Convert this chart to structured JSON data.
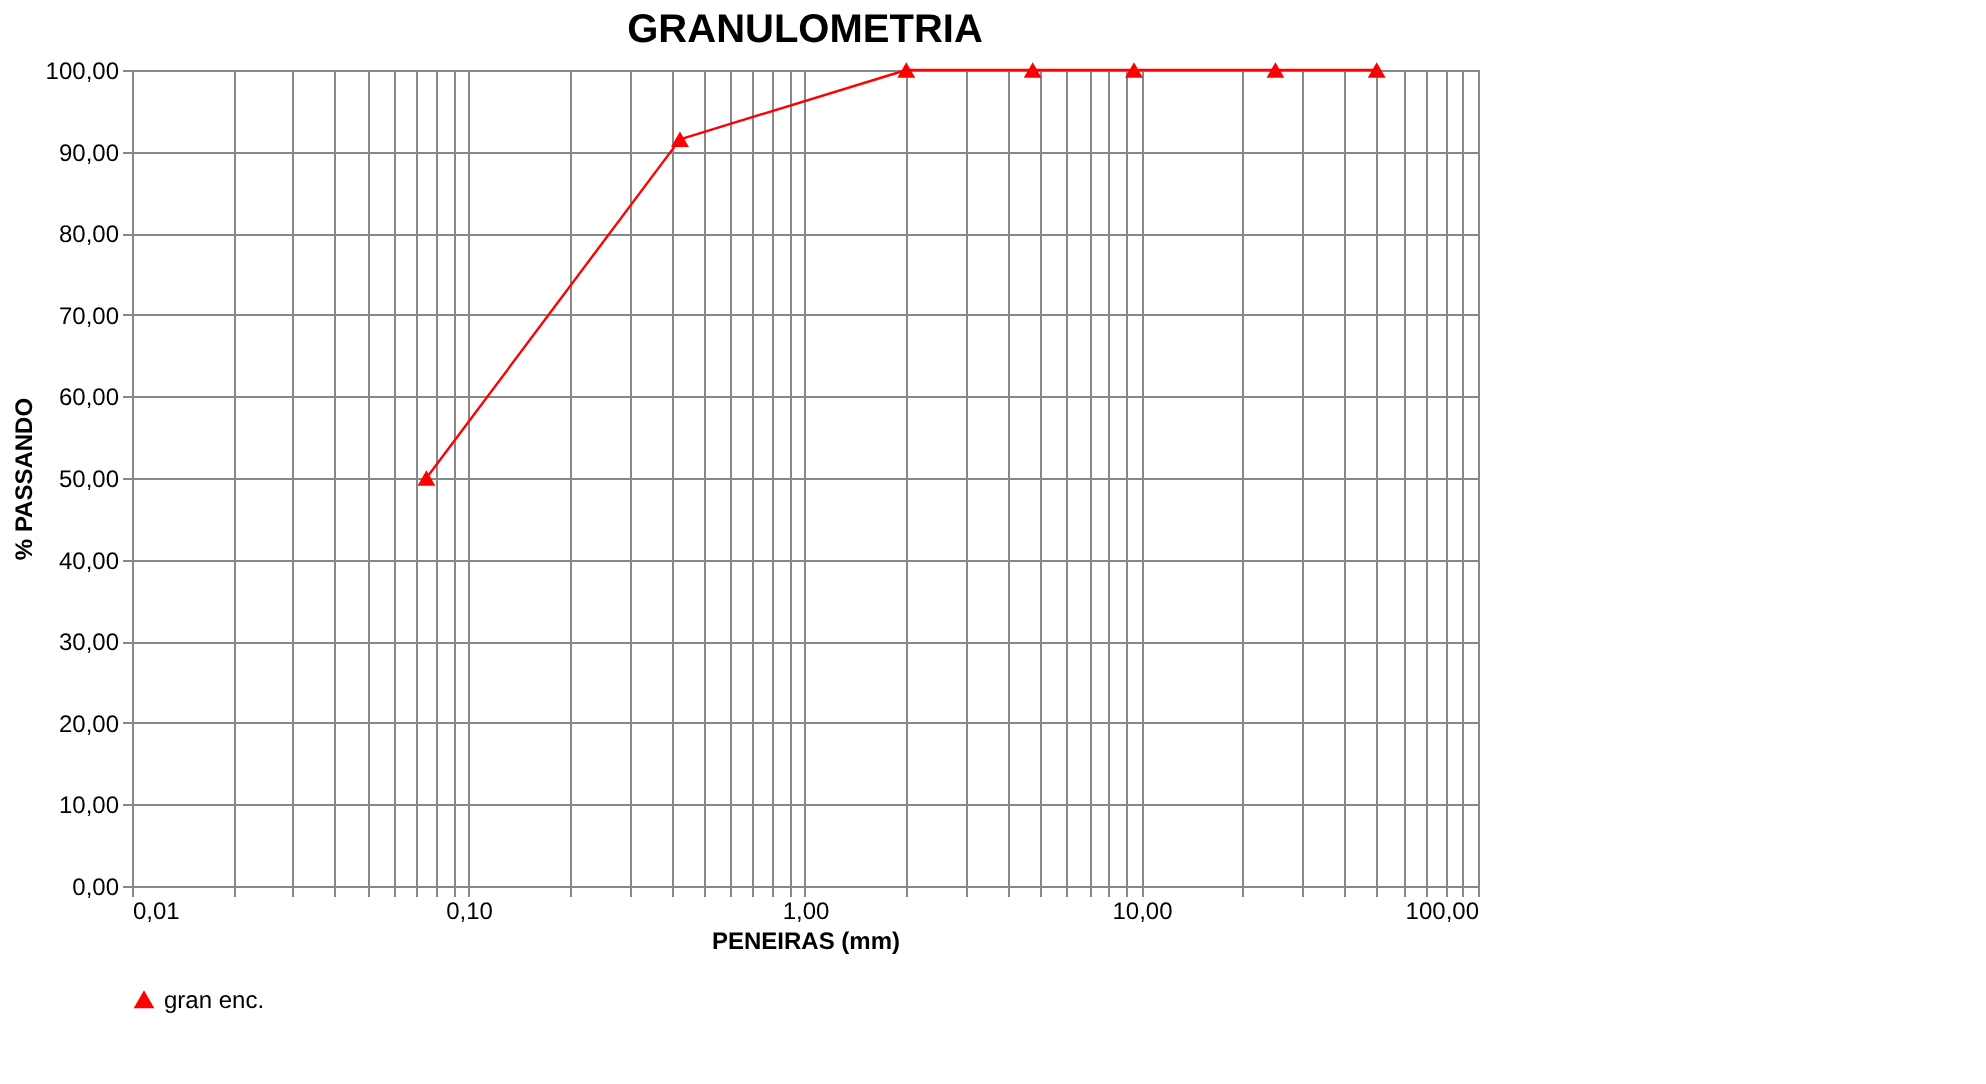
{
  "chart_data": {
    "type": "line",
    "title": "GRANULOMETRIA",
    "xlabel": "PENEIRAS (mm)",
    "ylabel": "% PASSANDO",
    "x": [
      0.075,
      0.425,
      2.0,
      4.75,
      9.5,
      25,
      50
    ],
    "series": [
      {
        "name": "gran enc.",
        "color": "#ff0000",
        "values": [
          50.0,
          91.5,
          100.0,
          100.0,
          100.0,
          100.0,
          100.0
        ]
      }
    ],
    "log": "x",
    "xlim": [
      0.01,
      100
    ],
    "ylim": [
      0,
      100
    ],
    "xticks": [
      {
        "value": 0.01,
        "label": "0,01"
      },
      {
        "value": 0.02,
        "label": null
      },
      {
        "value": 0.03,
        "label": null
      },
      {
        "value": 0.04,
        "label": null
      },
      {
        "value": 0.05,
        "label": null
      },
      {
        "value": 0.06,
        "label": null
      },
      {
        "value": 0.07,
        "label": null
      },
      {
        "value": 0.08,
        "label": null
      },
      {
        "value": 0.09,
        "label": null
      },
      {
        "value": 0.1,
        "label": "0,10"
      },
      {
        "value": 0.2,
        "label": null
      },
      {
        "value": 0.3,
        "label": null
      },
      {
        "value": 0.4,
        "label": null
      },
      {
        "value": 0.5,
        "label": null
      },
      {
        "value": 0.6,
        "label": null
      },
      {
        "value": 0.7,
        "label": null
      },
      {
        "value": 0.8,
        "label": null
      },
      {
        "value": 0.9,
        "label": null
      },
      {
        "value": 1,
        "label": "1,00"
      },
      {
        "value": 2,
        "label": null
      },
      {
        "value": 3,
        "label": null
      },
      {
        "value": 4,
        "label": null
      },
      {
        "value": 5,
        "label": null
      },
      {
        "value": 6,
        "label": null
      },
      {
        "value": 7,
        "label": null
      },
      {
        "value": 8,
        "label": null
      },
      {
        "value": 9,
        "label": null
      },
      {
        "value": 10,
        "label": "10,00"
      },
      {
        "value": 20,
        "label": null
      },
      {
        "value": 30,
        "label": null
      },
      {
        "value": 40,
        "label": null
      },
      {
        "value": 50,
        "label": null
      },
      {
        "value": 60,
        "label": null
      },
      {
        "value": 70,
        "label": null
      },
      {
        "value": 80,
        "label": null
      },
      {
        "value": 90,
        "label": null
      },
      {
        "value": 100,
        "label": "100,00"
      }
    ],
    "yticks": [
      {
        "value": 0,
        "label": "0,00"
      },
      {
        "value": 10,
        "label": "10,00"
      },
      {
        "value": 20,
        "label": "20,00"
      },
      {
        "value": 30,
        "label": "30,00"
      },
      {
        "value": 40,
        "label": "40,00"
      },
      {
        "value": 50,
        "label": "50,00"
      },
      {
        "value": 60,
        "label": "60,00"
      },
      {
        "value": 70,
        "label": "70,00"
      },
      {
        "value": 80,
        "label": "80,00"
      },
      {
        "value": 90,
        "label": "90,00"
      },
      {
        "value": 100,
        "label": "100,00"
      }
    ],
    "grid": true,
    "legend": "bottom",
    "marker": "triangle",
    "line_style": "solid"
  }
}
